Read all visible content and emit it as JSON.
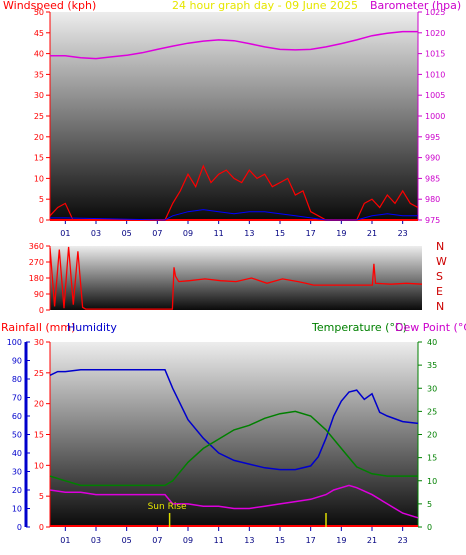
{
  "colors": {
    "wind": "#ff0000",
    "gust_wind": "#ff0000",
    "avg_wind": "#0000ff",
    "wind_ground": "#008000",
    "barometer": "#dd00dd",
    "direction": "#ff0000",
    "rainfall": "#ff0000",
    "humidity": "#0000cc",
    "temperature": "#008000",
    "dewpoint": "#dd00dd",
    "sunrise": "#dddd00",
    "axis_left": "#ff0000",
    "axis_right": "#cc00cc"
  },
  "header": {
    "windspeed_label": "Windspeed (kph)",
    "title": "24 hour graph day - 09 June 2025",
    "barometer_label": "Barometer (hpa)"
  },
  "bottom_header": {
    "rainfall_label": "Rainfall (mm)",
    "humidity_label": "Humidity",
    "temperature_label": "Temperature (°C)",
    "dewpoint_label": "Dew Point (°C)"
  },
  "compass": [
    "N",
    "W",
    "S",
    "E",
    "N"
  ],
  "sunrise_label": "Sun Rise",
  "chart_data": [
    {
      "type": "line",
      "name": "wind-barometer",
      "x_ticks": [
        "01",
        "03",
        "05",
        "07",
        "09",
        "11",
        "13",
        "15",
        "17",
        "19",
        "21",
        "23"
      ],
      "y_left_ticks": [
        0,
        5,
        10,
        15,
        20,
        25,
        30,
        35,
        40,
        45,
        50
      ],
      "y_right_ticks": [
        975,
        980,
        985,
        990,
        995,
        1000,
        1005,
        1010,
        1015,
        1020,
        1025
      ],
      "ylim_left": [
        0,
        50
      ],
      "ylim_right": [
        975,
        1025
      ],
      "xlim": [
        0,
        24
      ],
      "series": [
        {
          "key": "barometer",
          "x": [
            0,
            1,
            2,
            3,
            4,
            5,
            6,
            7,
            8,
            9,
            10,
            11,
            12,
            13,
            14,
            15,
            16,
            17,
            18,
            19,
            20,
            21,
            22,
            23,
            24
          ],
          "values": [
            1014.5,
            1014.5,
            1014,
            1013.8,
            1014.2,
            1014.6,
            1015.2,
            1016,
            1016.8,
            1017.5,
            1018,
            1018.3,
            1018.1,
            1017.4,
            1016.6,
            1016,
            1015.9,
            1016,
            1016.6,
            1017.4,
            1018.3,
            1019.3,
            1019.9,
            1020.3,
            1020.3
          ]
        },
        {
          "key": "wind_gust",
          "x": [
            0,
            0.5,
            1,
            1.5,
            7.5,
            8,
            8.5,
            9,
            9.5,
            10,
            10.5,
            11,
            11.5,
            12,
            12.5,
            13,
            13.5,
            14,
            14.5,
            15,
            15.5,
            16,
            16.5,
            17,
            18,
            20,
            20.5,
            21,
            21.5,
            22,
            22.5,
            23,
            23.5,
            24
          ],
          "values": [
            1,
            3,
            4,
            0,
            0,
            4,
            7,
            11,
            8,
            13,
            9,
            11,
            12,
            10,
            9,
            12,
            10,
            11,
            8,
            9,
            10,
            6,
            7,
            2,
            0,
            0,
            4,
            5,
            3,
            6,
            4,
            7,
            4,
            3
          ]
        },
        {
          "key": "wind_avg",
          "x": [
            0,
            1,
            7.5,
            8,
            9,
            10,
            11,
            12,
            13,
            14,
            15,
            16,
            17,
            18,
            20,
            21,
            22,
            23,
            24
          ],
          "values": [
            0.5,
            0.5,
            0,
            1,
            2,
            2.5,
            2,
            1.5,
            2,
            2,
            1.5,
            1,
            0.5,
            0,
            0,
            1,
            1.5,
            1,
            1
          ]
        }
      ]
    },
    {
      "type": "line",
      "name": "wind-direction",
      "x_ticks": [
        "01",
        "03",
        "05",
        "07",
        "09",
        "11",
        "13",
        "15",
        "17",
        "19",
        "21",
        "23"
      ],
      "y_ticks": [
        360,
        270,
        180,
        90,
        0
      ],
      "ylim": [
        0,
        360
      ],
      "xlim": [
        0,
        24
      ],
      "series": [
        {
          "key": "direction",
          "x": [
            0,
            0.3,
            0.6,
            0.9,
            1.2,
            1.5,
            1.8,
            2.1,
            2.3,
            7.9,
            8,
            8.1,
            8.3,
            9,
            10,
            11,
            12,
            13,
            14,
            15,
            16,
            16.5,
            17,
            18,
            19,
            20,
            20.8,
            20.9,
            21,
            22,
            23,
            24
          ],
          "values": [
            350,
            20,
            340,
            10,
            355,
            30,
            330,
            15,
            5,
            5,
            240,
            190,
            160,
            165,
            175,
            165,
            160,
            180,
            150,
            175,
            160,
            150,
            140,
            140,
            140,
            140,
            140,
            260,
            150,
            145,
            150,
            145
          ]
        }
      ]
    },
    {
      "type": "line",
      "name": "temperature-humidity",
      "x_ticks": [
        "01",
        "03",
        "05",
        "07",
        "09",
        "11",
        "13",
        "15",
        "17",
        "19",
        "21",
        "23"
      ],
      "y_left_rain_ticks": [
        0,
        5,
        10,
        15,
        20,
        25,
        30
      ],
      "y_left_humidity_ticks": [
        0,
        10,
        20,
        30,
        40,
        50,
        60,
        70,
        80,
        90,
        100
      ],
      "y_right_ticks": [
        0,
        5,
        10,
        15,
        20,
        25,
        30,
        35,
        40
      ],
      "ylim_rain": [
        0,
        30
      ],
      "ylim_humidity": [
        0,
        100
      ],
      "ylim_temp": [
        0,
        40
      ],
      "xlim": [
        0,
        24
      ],
      "series": [
        {
          "key": "humidity",
          "x": [
            0,
            0.5,
            1,
            2,
            3,
            4,
            5,
            6,
            7,
            7.5,
            8,
            9,
            10,
            11,
            12,
            13,
            14,
            15,
            16,
            17,
            17.5,
            18,
            18.5,
            19,
            19.5,
            20,
            20.5,
            21,
            21.5,
            22,
            23,
            24
          ],
          "values": [
            82,
            84,
            84,
            85,
            85,
            85,
            85,
            85,
            85,
            85,
            75,
            58,
            48,
            40,
            36,
            34,
            32,
            31,
            31,
            33,
            38,
            48,
            60,
            68,
            73,
            74,
            69,
            72,
            62,
            60,
            57,
            56
          ]
        },
        {
          "key": "temperature",
          "x": [
            0,
            1,
            2,
            3,
            4,
            5,
            6,
            7,
            7.5,
            8,
            9,
            10,
            11,
            12,
            13,
            14,
            15,
            16,
            17,
            18,
            19,
            20,
            21,
            22,
            23,
            24
          ],
          "values": [
            11,
            10,
            9,
            9,
            9,
            9,
            9,
            9,
            9,
            10,
            14,
            17,
            19,
            21,
            22,
            23.5,
            24.5,
            25,
            24,
            21,
            17,
            13,
            11.5,
            11,
            11,
            11
          ]
        },
        {
          "key": "dewpoint",
          "x": [
            0,
            1,
            2,
            3,
            4,
            5,
            6,
            7,
            7.5,
            8,
            9,
            10,
            11,
            12,
            13,
            14,
            15,
            16,
            17,
            18,
            18.5,
            19,
            19.5,
            20,
            21,
            22,
            23,
            24
          ],
          "values": [
            8,
            7.5,
            7.5,
            7,
            7,
            7,
            7,
            7,
            7,
            5,
            5,
            4.5,
            4.5,
            4,
            4,
            4.5,
            5,
            5.5,
            6,
            7,
            8,
            8.5,
            9,
            8.5,
            7,
            5,
            3,
            2
          ]
        }
      ],
      "markers": {
        "sunrise_x": 7.8,
        "sunset_x": 18
      }
    }
  ]
}
